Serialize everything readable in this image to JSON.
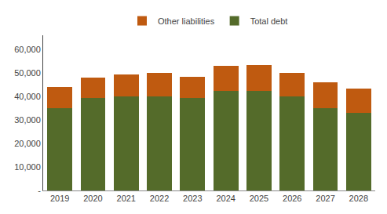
{
  "chart_data": {
    "type": "bar",
    "stacked": true,
    "categories": [
      "2019",
      "2020",
      "2021",
      "2022",
      "2023",
      "2024",
      "2025",
      "2026",
      "2027",
      "2028"
    ],
    "series": [
      {
        "name": "Total debt",
        "color": "#546b2a",
        "values": [
          35000,
          39500,
          40000,
          40000,
          39500,
          42500,
          42500,
          40000,
          35000,
          33000
        ]
      },
      {
        "name": "Other liabilities",
        "color": "#bf5a10",
        "values": [
          9000,
          8500,
          9500,
          10000,
          9000,
          10500,
          11000,
          10000,
          11000,
          10500
        ]
      }
    ],
    "ylim": [
      0,
      66000
    ],
    "yticks": [
      {
        "value": 0,
        "label": "-"
      },
      {
        "value": 10000,
        "label": "10,000"
      },
      {
        "value": 20000,
        "label": "20,000"
      },
      {
        "value": 30000,
        "label": "30,000"
      },
      {
        "value": 40000,
        "label": "40,000"
      },
      {
        "value": 50000,
        "label": "50,000"
      },
      {
        "value": 60000,
        "label": "60,000"
      }
    ],
    "grid": false,
    "legend": "top"
  }
}
